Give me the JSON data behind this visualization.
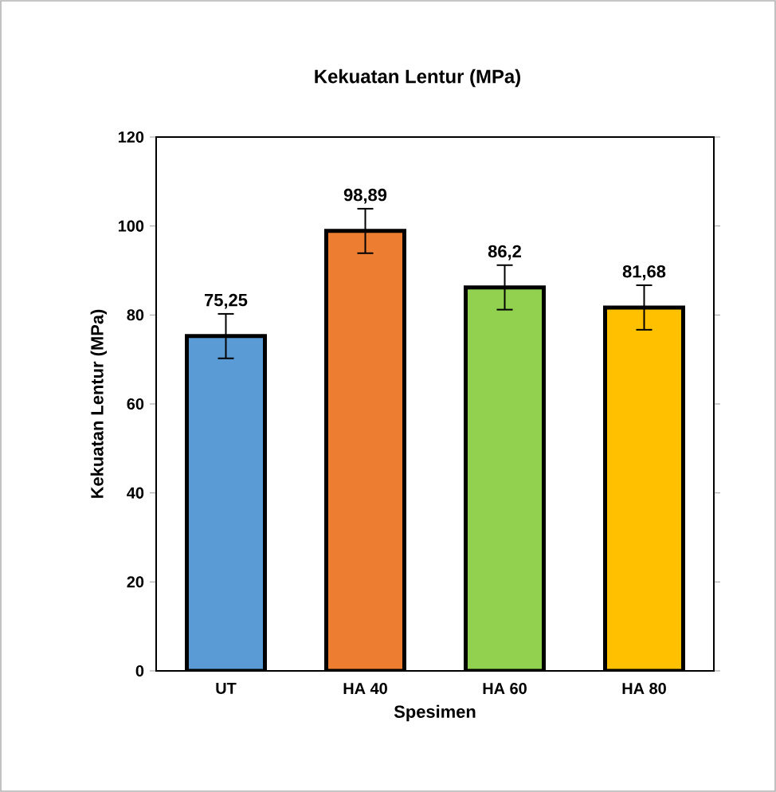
{
  "chart_data": {
    "type": "bar",
    "title": "Kekuatan Lentur (MPa)",
    "xlabel": "Spesimen",
    "ylabel": "Kekuatan Lentur (MPa)",
    "categories": [
      "UT",
      "HA 40",
      "HA 60",
      "HA 80"
    ],
    "values": [
      75.25,
      98.89,
      86.2,
      81.68
    ],
    "colors": [
      "#5b9bd5",
      "#ed7d31",
      "#92d050",
      "#ffc000"
    ],
    "errors": [
      5,
      5,
      5,
      5
    ],
    "value_labels": [
      "75,25",
      "98,89",
      "86,2",
      "81,68"
    ],
    "ylim": [
      0,
      120
    ],
    "yticks": [
      0,
      20,
      40,
      60,
      80,
      100,
      120
    ]
  }
}
